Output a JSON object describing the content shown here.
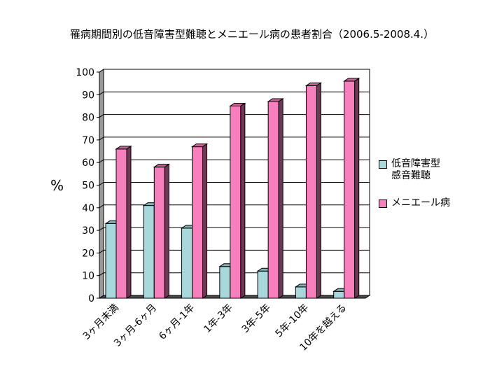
{
  "chart_data": {
    "type": "bar",
    "title": "罹病期間別の低音障害型難聴とメニエール病の患者割合（2006.5-2008.4.）",
    "ylabel": "%",
    "xlabel": "",
    "ylim": [
      0,
      100
    ],
    "yticks": [
      "0",
      "10",
      "20",
      "30",
      "40",
      "50",
      "60",
      "70",
      "80",
      "90",
      "100"
    ],
    "grid": true,
    "legend_position": "right",
    "categories": [
      "3ヶ月未満",
      "3ヶ月-6ヶ月",
      "6ヶ月-1年",
      "1年-3年",
      "3年-5年",
      "5年-10年",
      "10年を越える"
    ],
    "series": [
      {
        "name": "低音障害型\n感音難聴",
        "color": "#a8d8dc",
        "values": [
          33,
          41,
          31,
          14,
          12,
          5,
          3
        ]
      },
      {
        "name": "メニエール病",
        "color": "#f77fbe",
        "values": [
          66,
          58,
          67,
          85,
          87,
          94,
          96
        ]
      }
    ]
  }
}
